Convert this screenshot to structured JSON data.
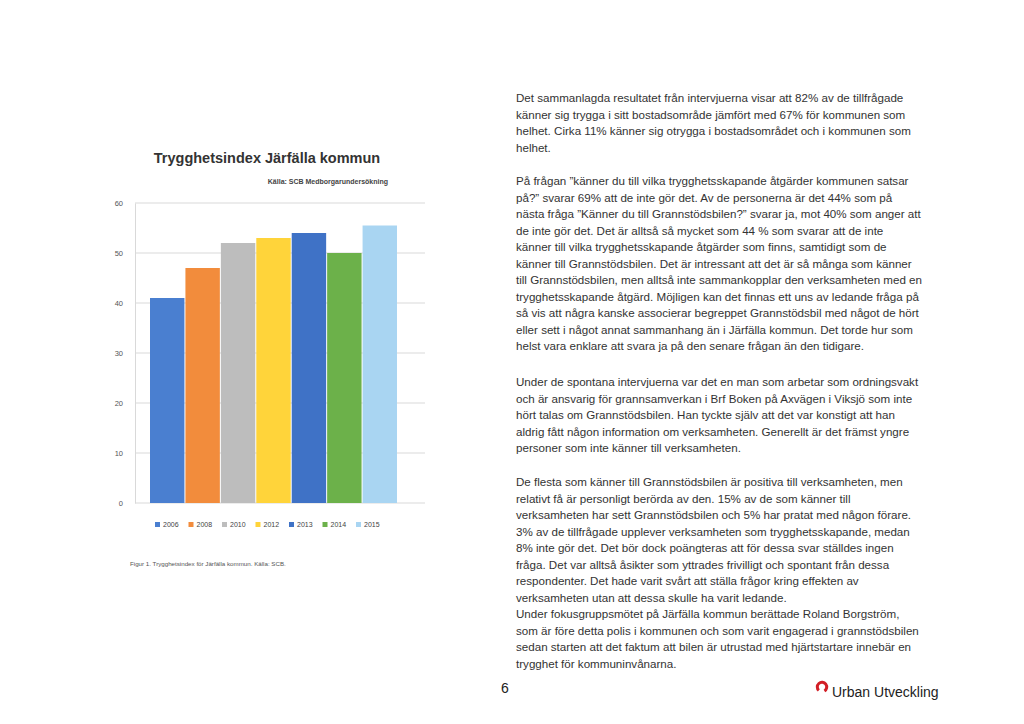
{
  "chart_data": {
    "type": "bar",
    "title": "Trygghetsindex Järfälla kommun",
    "subtitle": "Källa: SCB Medborgarundersökning",
    "categories": [
      "2006",
      "2008",
      "2010",
      "2012",
      "2013",
      "2014",
      "2015"
    ],
    "values": [
      41,
      47,
      52,
      53,
      54,
      50,
      55.5
    ],
    "colors": [
      "#4a7fd0",
      "#f28c3c",
      "#bdbdbd",
      "#ffd43a",
      "#3f72c6",
      "#6cb14a",
      "#a9d5f2"
    ],
    "ylim": [
      0,
      60
    ],
    "yticks": [
      0,
      10,
      20,
      30,
      40,
      50,
      60
    ],
    "grid": true,
    "legend": "bottom",
    "tick_labels": "y"
  },
  "page": {
    "caption": "Figur 1. Trygghetsindex för Järfälla kommun. Källa: SCB.",
    "paragraphs": [
      [
        "Det sammanlagda resultatet från intervjuerna visar att 82% av de tillfrågade",
        "känner sig trygga i sitt bostadsområde jämfört med 67% för kommunen som",
        "helhet. Cirka 11% känner sig otrygga i bostadsområdet och i kommunen som",
        "helhet."
      ],
      [
        "På frågan ”känner du till vilka trygghetsskapande åtgärder kommunen satsar",
        "på?” svarar 69% att de inte gör det. Av de personerna är det 44% som på",
        "nästa fråga ”Känner du till Grannstödsbilen?” svarar ja, mot 40% som anger att",
        "de inte gör det. Det är alltså så mycket som 44 % som svarar att de inte",
        "känner till vilka trygghetsskapande åtgärder som finns, samtidigt som de",
        "känner till Grannstödsbilen. Det är intressant att det är så många som känner",
        "till Grannstödsbilen, men alltså inte sammankopplar den verksamheten med en",
        "trygghetsskapande åtgärd. Möjligen kan det finnas ett uns av ledande fråga på",
        "så vis att några kanske associerar begreppet Grannstödsbil med något de hört",
        "eller sett i något annat sammanhang än i Järfälla kommun. Det torde hur som",
        "helst vara enklare att svara ja på den senare frågan än den tidigare."
      ],
      [
        "Under de spontana intervjuerna var det en man som arbetar som ordningsvakt",
        "och är ansvarig för grannsamverkan i Brf Boken på Axvägen i Viksjö som inte",
        "hört talas om Grannstödsbilen. Han tyckte själv att det var konstigt att han",
        "aldrig fått någon information om verksamheten. Generellt är det främst yngre",
        "personer som inte känner till verksamheten."
      ],
      [
        "De flesta som känner till Grannstödsbilen är positiva till verksamheten, men",
        "relativt få är personligt berörda av den. 15% av de som känner till",
        "verksamheten har sett Grannstödsbilen och 5% har pratat med någon förare.",
        "3% av de tillfrågade upplever verksamheten som trygghetsskapande, medan",
        "8% inte gör det. Det bör dock poängteras att för dessa svar ställdes ingen",
        "fråga. Det var alltså åsikter som yttrades frivilligt och spontant från dessa",
        "respondenter. Det hade varit svårt att ställa frågor kring effekten av",
        "verksamheten utan att dessa skulle ha varit ledande."
      ],
      [
        "Under fokusgruppsmötet på Järfälla kommun berättade Roland Borgström,",
        "som är före detta polis i kommunen och som varit engagerad i grannstödsbilen",
        "sedan starten att det faktum att bilen är utrustad med hjärtstartare innebär en",
        "trygghet för kommuninvånarna."
      ]
    ],
    "page_number": "6",
    "logo_text": "Urban Utveckling"
  }
}
